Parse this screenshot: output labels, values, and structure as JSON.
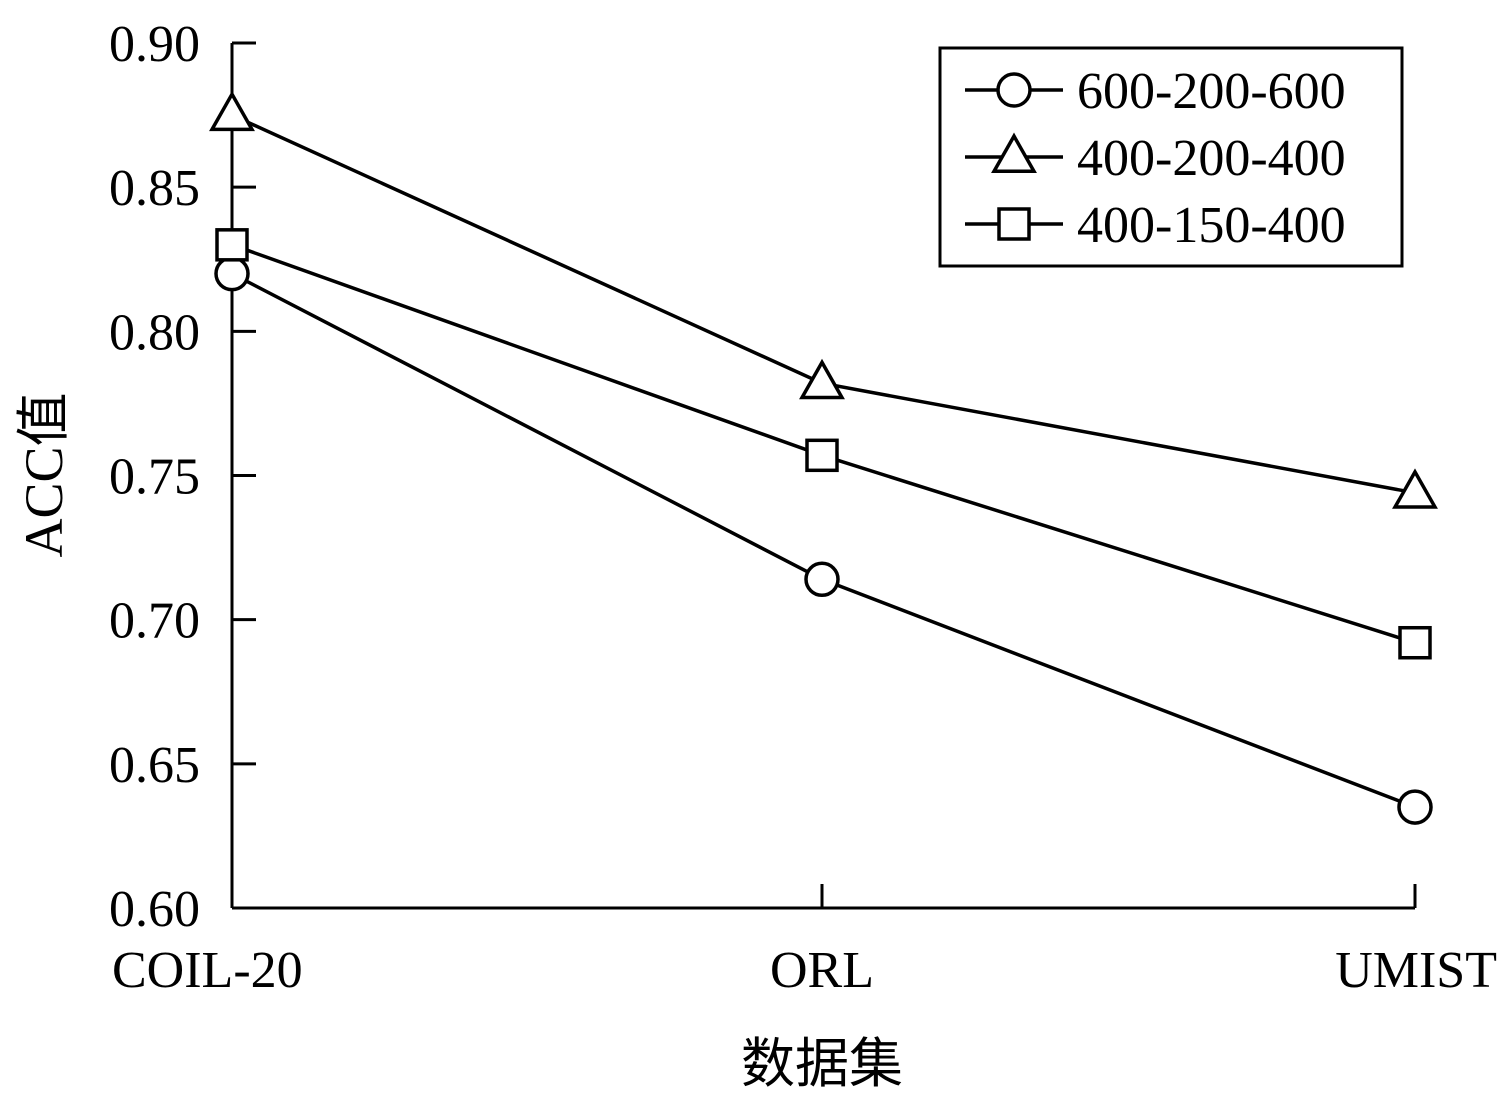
{
  "chart_data": {
    "type": "line",
    "categories": [
      "COIL-20",
      "ORL",
      "UMIST"
    ],
    "xlabel": "数据集",
    "ylabel": "ACC值",
    "ylim": [
      0.6,
      0.9
    ],
    "yticks": [
      "0.60",
      "0.65",
      "0.70",
      "0.75",
      "0.80",
      "0.85",
      "0.90"
    ],
    "grid": false,
    "legend_position": "top-right",
    "series": [
      {
        "name": "600-200-600",
        "marker": "circle",
        "values": [
          0.82,
          0.714,
          0.635
        ]
      },
      {
        "name": "400-200-400",
        "marker": "triangle",
        "values": [
          0.875,
          0.782,
          0.744
        ]
      },
      {
        "name": "400-150-400",
        "marker": "square",
        "values": [
          0.83,
          0.757,
          0.692
        ]
      }
    ]
  }
}
